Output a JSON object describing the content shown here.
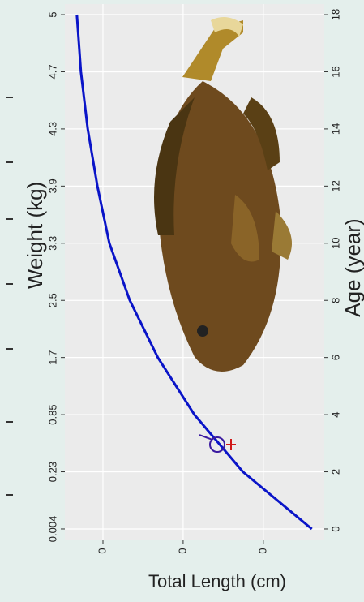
{
  "chart_data": {
    "type": "line",
    "title": "Weight (kg)",
    "x_label": "Age (year)",
    "y_label": "Total Length (cm)",
    "x": [
      0,
      2,
      4,
      6,
      8,
      10,
      12,
      14,
      16,
      18
    ],
    "series": [
      {
        "name": "Total Length",
        "color": "#0a14c8",
        "values": [
          7.9,
          25.1,
          37.2,
          46.3,
          53.3,
          58.4,
          61.4,
          63.8,
          65.5,
          66.5
        ]
      }
    ],
    "xlim": [
      -0.37,
      18.37
    ],
    "xticks": [
      0,
      2,
      4,
      6,
      8,
      10,
      12,
      14,
      16,
      18
    ],
    "x2ticks": [
      0.004,
      0.23,
      0.85,
      1.7,
      2.5,
      3.3,
      3.9,
      4.3,
      4.7,
      5
    ],
    "ylim": [
      4.8,
      69.5
    ],
    "yticks": [
      {
        "value": 20,
        "label": "0"
      },
      {
        "value": 40,
        "label": "0"
      },
      {
        "value": 60,
        "label": "0"
      }
    ],
    "grid": true
  }
}
